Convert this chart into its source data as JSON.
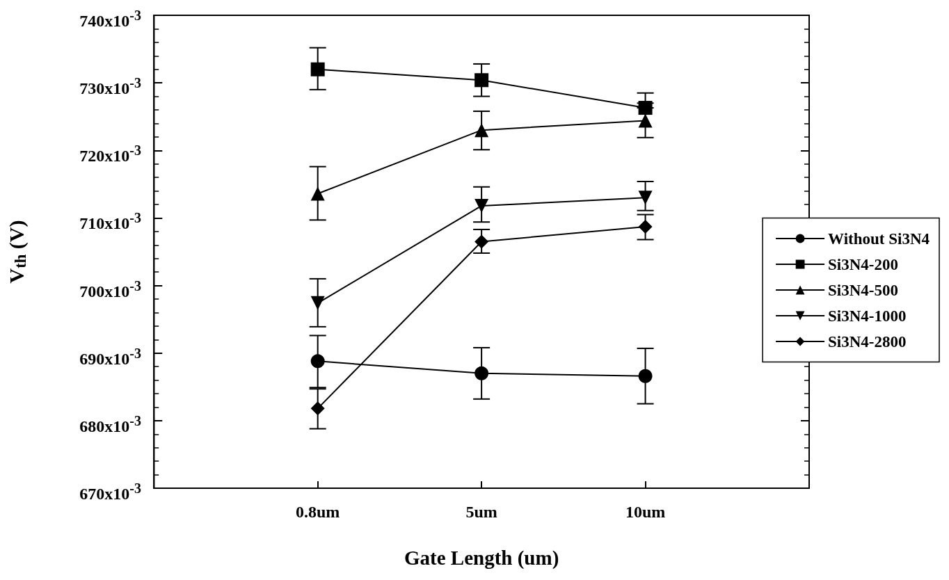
{
  "chart_data": {
    "type": "line",
    "xlabel": "Gate Length (um)",
    "ylabel": "V$_{th}$ (V)",
    "categories": [
      "0.8um",
      "5um",
      "10um"
    ],
    "ylim": [
      0.67,
      0.74
    ],
    "yticks": [
      {
        "value": 0.67,
        "label": "670x10$^{-3}$"
      },
      {
        "value": 0.68,
        "label": "680x10$^{-3}$"
      },
      {
        "value": 0.69,
        "label": "690x10$^{-3}$"
      },
      {
        "value": 0.7,
        "label": "700x10$^{-3}$"
      },
      {
        "value": 0.71,
        "label": "710x10$^{-3}$"
      },
      {
        "value": 0.72,
        "label": "720x10$^{-3}$"
      },
      {
        "value": 0.73,
        "label": "730x10$^{-3}$"
      },
      {
        "value": 0.74,
        "label": "740x10$^{-3}$"
      }
    ],
    "grid": false,
    "legend": "right",
    "line_style": "solid",
    "series": [
      {
        "name": "Without Si3N4",
        "color": "#000000",
        "marker": "circle",
        "values": [
          0.6888,
          0.687,
          0.6866
        ],
        "errors": [
          [
            0.6849,
            0.6926
          ],
          [
            0.6832,
            0.6908
          ],
          [
            0.6825,
            0.6907
          ]
        ]
      },
      {
        "name": "Si3N4-200",
        "color": "#000000",
        "marker": "square",
        "values": [
          0.732,
          0.7304,
          0.7263
        ],
        "errors": [
          [
            0.729,
            0.7352
          ],
          [
            0.728,
            0.7328
          ],
          [
            0.7263,
            0.7285
          ]
        ]
      },
      {
        "name": "Si3N4-500",
        "color": "#000000",
        "marker": "triangle",
        "values": [
          0.7136,
          0.723,
          0.7244
        ],
        "errors": [
          [
            0.7097,
            0.7176
          ],
          [
            0.7201,
            0.7258
          ],
          [
            0.7219,
            0.727
          ]
        ]
      },
      {
        "name": "Si3N4-1000",
        "color": "#000000",
        "marker": "triangle-down",
        "values": [
          0.6974,
          0.7118,
          0.713
        ],
        "errors": [
          [
            0.6939,
            0.701
          ],
          [
            0.7094,
            0.7146
          ],
          [
            0.7111,
            0.7154
          ]
        ]
      },
      {
        "name": "Si3N4-2800",
        "color": "#000000",
        "marker": "diamond",
        "values": [
          0.6818,
          0.7065,
          0.7087
        ],
        "errors": [
          [
            0.6788,
            0.6847
          ],
          [
            0.7048,
            0.7083
          ],
          [
            0.7068,
            0.7105
          ]
        ]
      }
    ]
  }
}
